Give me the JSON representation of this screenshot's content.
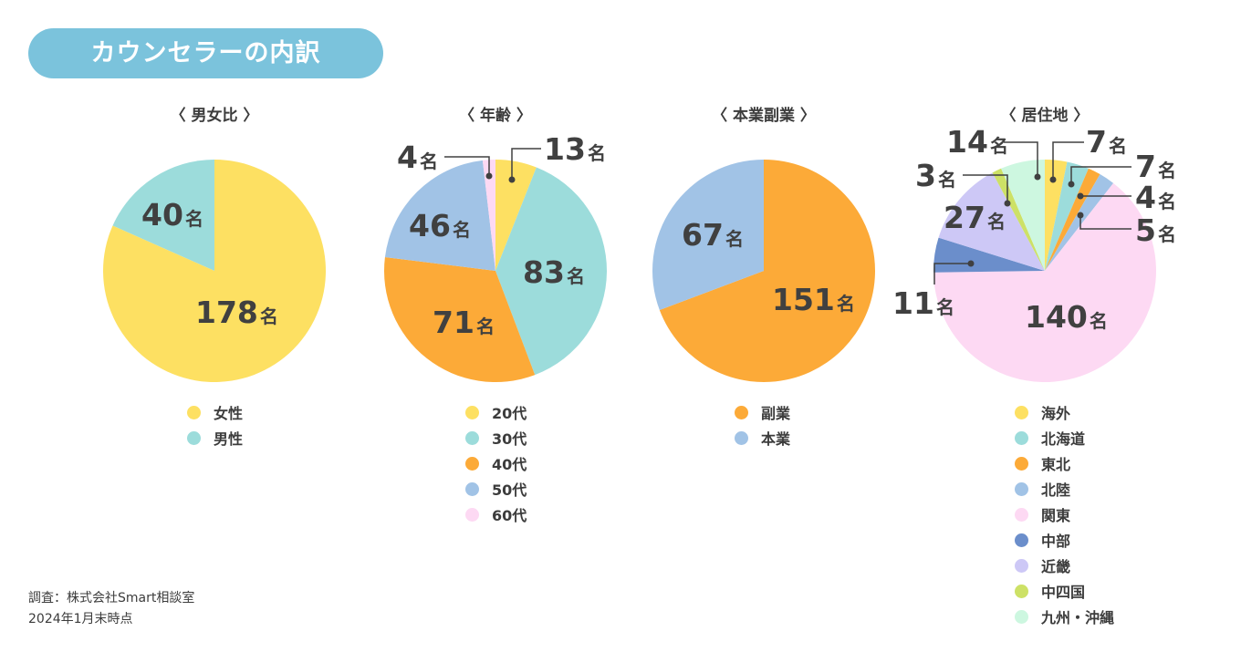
{
  "header": {
    "title": "カウンセラーの内訳"
  },
  "colors": {
    "yellow": "#fde062",
    "teal": "#9cdcdb",
    "orange": "#fcaa38",
    "blue": "#a1c3e6",
    "pink": "#fdd9f3",
    "navy": "#6b8ecb",
    "lavender": "#cdc8f6",
    "olive": "#cde166",
    "mint": "#cdf7e0",
    "pill": "#7bc3dc",
    "leader": "#404040"
  },
  "unit": "名",
  "chart_data": [
    {
      "type": "pie",
      "title": "〈 男女比 〉",
      "slices": [
        {
          "label": "女性",
          "value": 178,
          "color": "#fde062"
        },
        {
          "label": "男性",
          "value": 40,
          "color": "#9cdcdb"
        }
      ]
    },
    {
      "type": "pie",
      "title": "〈 年齢 〉",
      "slices": [
        {
          "label": "20代",
          "value": 13,
          "color": "#fde062"
        },
        {
          "label": "30代",
          "value": 83,
          "color": "#9cdcdb"
        },
        {
          "label": "40代",
          "value": 71,
          "color": "#fcaa38"
        },
        {
          "label": "50代",
          "value": 46,
          "color": "#a1c3e6"
        },
        {
          "label": "60代",
          "value": 4,
          "color": "#fdd9f3"
        }
      ]
    },
    {
      "type": "pie",
      "title": "〈 本業副業 〉",
      "slices": [
        {
          "label": "副業",
          "value": 151,
          "color": "#fcaa38"
        },
        {
          "label": "本業",
          "value": 67,
          "color": "#a1c3e6"
        }
      ]
    },
    {
      "type": "pie",
      "title": "〈 居住地 〉",
      "slices": [
        {
          "label": "海外",
          "value": 7,
          "color": "#fde062"
        },
        {
          "label": "北海道",
          "value": 7,
          "color": "#9cdcdb"
        },
        {
          "label": "東北",
          "value": 4,
          "color": "#fcaa38"
        },
        {
          "label": "北陸",
          "value": 5,
          "color": "#a1c3e6"
        },
        {
          "label": "関東",
          "value": 140,
          "color": "#fdd9f3"
        },
        {
          "label": "中部",
          "value": 11,
          "color": "#6b8ecb"
        },
        {
          "label": "近畿",
          "value": 27,
          "color": "#cdc8f6"
        },
        {
          "label": "中四国",
          "value": 3,
          "color": "#cde166"
        },
        {
          "label": "九州・沖縄",
          "value": 14,
          "color": "#cdf7e0"
        }
      ]
    }
  ],
  "footnote": {
    "line1": "調査：株式会社Smart相談室",
    "line2": "2024年1月末時点"
  }
}
